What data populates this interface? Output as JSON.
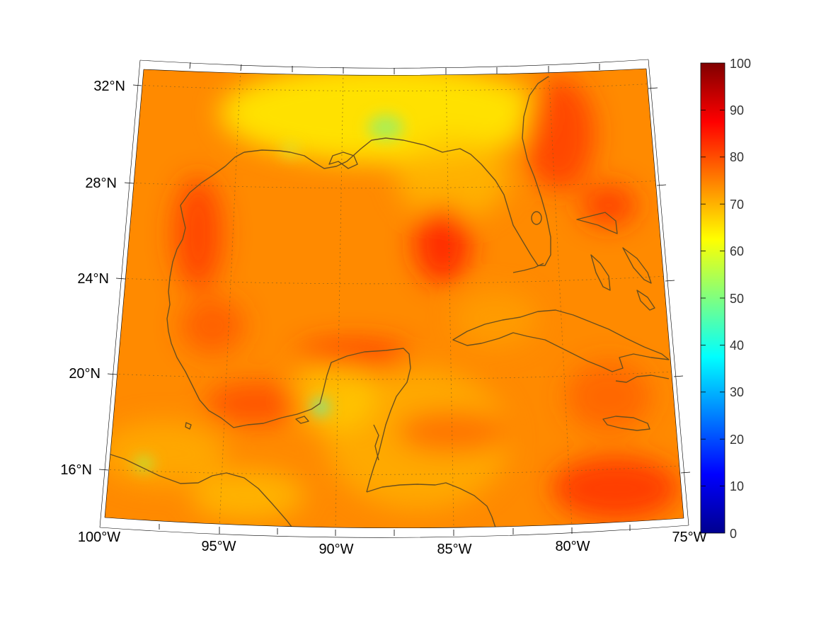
{
  "map": {
    "lat_labels": [
      "32°N",
      "28°N",
      "24°N",
      "20°N",
      "16°N"
    ],
    "lon_labels": [
      "100°W",
      "95°W",
      "90°W",
      "85°W",
      "80°W",
      "75°W"
    ],
    "colorbar_ticks": [
      "100",
      "90",
      "80",
      "70",
      "60",
      "50",
      "40",
      "30",
      "20",
      "10",
      "0"
    ],
    "colorbar_range": [
      0,
      100
    ],
    "colormap": "jet",
    "coastline_color": "#6b4f1e",
    "grid": "dotted",
    "colors": {
      "field_base": "#ff8c00",
      "hot": "#ff3a00",
      "warm": "#ffa200",
      "yellow": "#ffe000",
      "green": "#9ef060",
      "cyan": "#40ffd0"
    }
  }
}
